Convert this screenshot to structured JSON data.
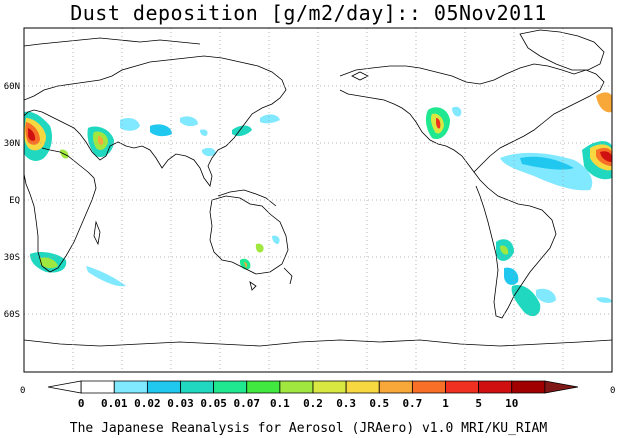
{
  "title": "Dust deposition [g/m2/day]:: 05Nov2011",
  "footer": "The Japanese Reanalysis for Aerosol (JRAero) v1.0 MRI/KU_RIAM",
  "lat_labels": [
    "60N",
    "30N",
    "EQ",
    "30S",
    "60S"
  ],
  "edge_labels": {
    "left": "0",
    "right": "0"
  },
  "colorbar": {
    "labels": [
      "0",
      "0.01",
      "0.02",
      "0.03",
      "0.05",
      "0.07",
      "0.1",
      "0.2",
      "0.3",
      "0.5",
      "0.7",
      "1",
      "5",
      "10"
    ],
    "colors": [
      "#ffffff",
      "#ffffff",
      "#80e8ff",
      "#20c8f0",
      "#20d8c0",
      "#20e890",
      "#40e840",
      "#a0e840",
      "#d8e840",
      "#f8d840",
      "#f8a838",
      "#f87028",
      "#f03020",
      "#d01010",
      "#a00000",
      "#801818"
    ]
  },
  "map": {
    "projection": "equirectangular, centered 180",
    "lat_range": [
      -90,
      90
    ],
    "lon_range": [
      20,
      380
    ],
    "grid": "dotted 30 degrees"
  }
}
